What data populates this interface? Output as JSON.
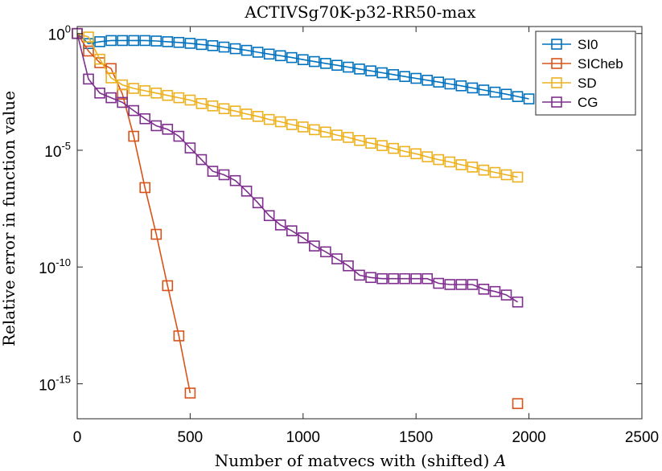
{
  "chart_data": {
    "type": "line",
    "title": "ACTIVSg70K-p32-RR50-max",
    "xlabel": "Number of matvecs with (shifted) ",
    "xlabel_var": "A",
    "ylabel": "Relative error in function value",
    "xlim": [
      0,
      2500
    ],
    "ylim_log10": [
      -16.5,
      0.3
    ],
    "xticks": [
      0,
      500,
      1000,
      1500,
      2000,
      2500
    ],
    "xtick_labels": [
      "0",
      "500",
      "1000",
      "1500",
      "2000",
      "2500"
    ],
    "yticks_log10": [
      0,
      -5,
      -10,
      -15
    ],
    "ytick_labels": [
      {
        "base": "10",
        "exp": "0"
      },
      {
        "base": "10",
        "exp": "-5"
      },
      {
        "base": "10",
        "exp": "-10"
      },
      {
        "base": "10",
        "exp": "-15"
      }
    ],
    "legend_position": "top-right",
    "series": [
      {
        "name": "SI0",
        "color": "#0072BD",
        "x": [
          0,
          50,
          100,
          150,
          200,
          250,
          300,
          350,
          400,
          450,
          500,
          550,
          600,
          650,
          700,
          750,
          800,
          850,
          900,
          950,
          1000,
          1050,
          1100,
          1150,
          1200,
          1250,
          1300,
          1350,
          1400,
          1450,
          1500,
          1550,
          1600,
          1650,
          1700,
          1750,
          1800,
          1850,
          1900,
          1950,
          2000
        ],
        "log10_y": [
          0,
          -0.43,
          -0.35,
          -0.3,
          -0.3,
          -0.3,
          -0.3,
          -0.32,
          -0.35,
          -0.38,
          -0.42,
          -0.47,
          -0.52,
          -0.58,
          -0.65,
          -0.72,
          -0.8,
          -0.88,
          -0.95,
          -1.03,
          -1.12,
          -1.2,
          -1.28,
          -1.36,
          -1.44,
          -1.52,
          -1.6,
          -1.68,
          -1.76,
          -1.84,
          -1.92,
          -2.0,
          -2.08,
          -2.16,
          -2.24,
          -2.33,
          -2.42,
          -2.51,
          -2.6,
          -2.7,
          -2.8
        ]
      },
      {
        "name": "SICheb",
        "color": "#D95319",
        "x": [
          0,
          50,
          100,
          150,
          200,
          250,
          300,
          350,
          400,
          450,
          500
        ],
        "log10_y": [
          0,
          -0.75,
          -1.25,
          -1.5,
          -2.6,
          -4.4,
          -6.6,
          -8.6,
          -10.8,
          -12.95,
          -15.4
        ],
        "extra_points": [
          {
            "x": 1950,
            "log10_y": -15.85
          }
        ]
      },
      {
        "name": "SD",
        "color": "#EDB120",
        "x": [
          0,
          50,
          100,
          150,
          200,
          250,
          300,
          350,
          400,
          450,
          500,
          550,
          600,
          650,
          700,
          750,
          800,
          850,
          900,
          950,
          1000,
          1050,
          1100,
          1150,
          1200,
          1250,
          1300,
          1350,
          1400,
          1450,
          1500,
          1550,
          1600,
          1650,
          1700,
          1750,
          1800,
          1850,
          1900,
          1950
        ],
        "log10_y": [
          0,
          -0.15,
          -1.1,
          -1.9,
          -2.2,
          -2.35,
          -2.45,
          -2.55,
          -2.65,
          -2.75,
          -2.85,
          -3.0,
          -3.1,
          -3.22,
          -3.32,
          -3.45,
          -3.55,
          -3.68,
          -3.78,
          -3.9,
          -4.0,
          -4.12,
          -4.22,
          -4.35,
          -4.45,
          -4.58,
          -4.7,
          -4.8,
          -4.92,
          -5.05,
          -5.15,
          -5.28,
          -5.4,
          -5.5,
          -5.62,
          -5.72,
          -5.85,
          -5.95,
          -6.05,
          -6.15
        ]
      },
      {
        "name": "CG",
        "color": "#7E2F8E",
        "x": [
          0,
          50,
          100,
          150,
          200,
          250,
          300,
          350,
          400,
          450,
          500,
          550,
          600,
          650,
          700,
          750,
          800,
          850,
          900,
          950,
          1000,
          1050,
          1100,
          1150,
          1200,
          1250,
          1300,
          1350,
          1400,
          1450,
          1500,
          1550,
          1600,
          1650,
          1700,
          1750,
          1800,
          1850,
          1900,
          1950
        ],
        "log10_y": [
          0,
          -1.95,
          -2.55,
          -2.75,
          -2.95,
          -3.3,
          -3.65,
          -3.95,
          -4.1,
          -4.4,
          -4.9,
          -5.4,
          -5.9,
          -6.05,
          -6.3,
          -6.75,
          -7.25,
          -7.8,
          -8.2,
          -8.45,
          -8.75,
          -9.1,
          -9.35,
          -9.65,
          -9.95,
          -10.35,
          -10.45,
          -10.5,
          -10.5,
          -10.5,
          -10.5,
          -10.5,
          -10.7,
          -10.75,
          -10.75,
          -10.75,
          -10.95,
          -11.05,
          -11.2,
          -11.5
        ]
      }
    ]
  }
}
